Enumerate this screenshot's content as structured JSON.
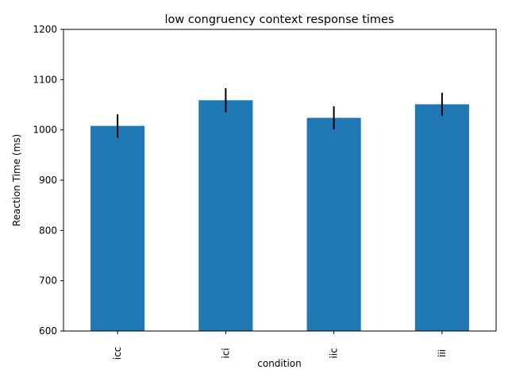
{
  "chart_data": {
    "type": "bar",
    "title": "low congruency context response times",
    "xlabel": "condition",
    "ylabel": "Reaction Time (ms)",
    "categories": [
      "icc",
      "ici",
      "iic",
      "iii"
    ],
    "values": [
      1008,
      1059,
      1024,
      1051
    ],
    "errors": [
      23,
      24,
      23,
      23
    ],
    "ylim": [
      600,
      1200
    ],
    "yticks": [
      600,
      700,
      800,
      900,
      1000,
      1100,
      1200
    ],
    "bar_color": "#1f77b4",
    "error_color": "#000000",
    "grid": false,
    "legend": "none"
  }
}
